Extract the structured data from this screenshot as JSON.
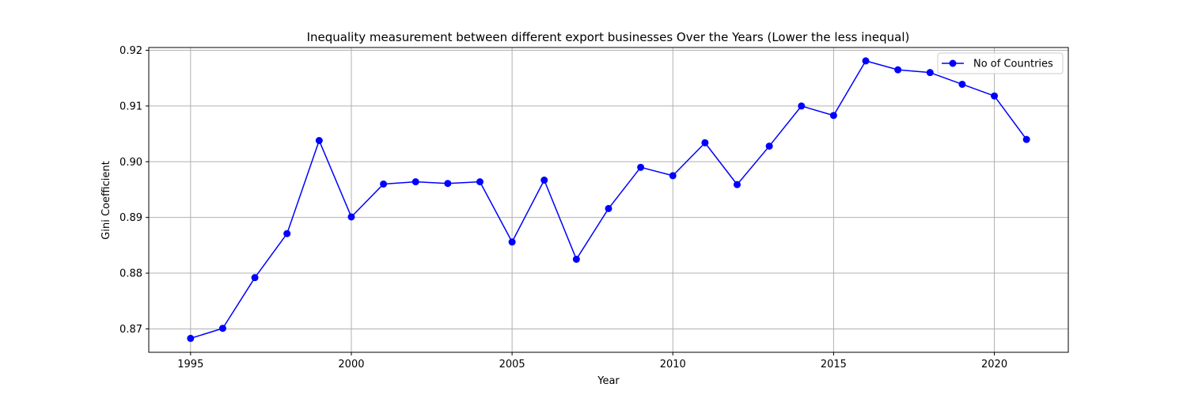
{
  "chart_data": {
    "type": "line",
    "title": "Inequality measurement between different export businesses Over the Years (Lower the less inequal)",
    "xlabel": "Year",
    "ylabel": "Gini Coefficient",
    "xlim": [
      1993.7,
      2022.3
    ],
    "ylim": [
      0.8658,
      0.9205
    ],
    "xticks": [
      1995,
      2000,
      2005,
      2010,
      2015,
      2020
    ],
    "yticks": [
      0.87,
      0.88,
      0.89,
      0.9,
      0.91,
      0.92
    ],
    "xtick_labels": [
      "1995",
      "2000",
      "2005",
      "2010",
      "2015",
      "2020"
    ],
    "ytick_labels": [
      "0.87",
      "0.88",
      "0.89",
      "0.90",
      "0.91",
      "0.92"
    ],
    "grid": true,
    "legend_position": "top-right",
    "series": [
      {
        "name": "No of Countries",
        "color": "#0000ff",
        "marker": "circle",
        "x": [
          1995,
          1996,
          1997,
          1998,
          1999,
          2000,
          2001,
          2002,
          2003,
          2004,
          2005,
          2006,
          2007,
          2008,
          2009,
          2010,
          2011,
          2012,
          2013,
          2014,
          2015,
          2016,
          2017,
          2018,
          2019,
          2020,
          2021
        ],
        "y": [
          0.8683,
          0.8701,
          0.8792,
          0.8871,
          0.9038,
          0.8901,
          0.896,
          0.8964,
          0.8961,
          0.8964,
          0.8856,
          0.8967,
          0.8825,
          0.8916,
          0.899,
          0.8975,
          0.9034,
          0.8959,
          0.9028,
          0.91,
          0.9083,
          0.9181,
          0.9165,
          0.916,
          0.9139,
          0.9118,
          0.904
        ]
      }
    ]
  }
}
